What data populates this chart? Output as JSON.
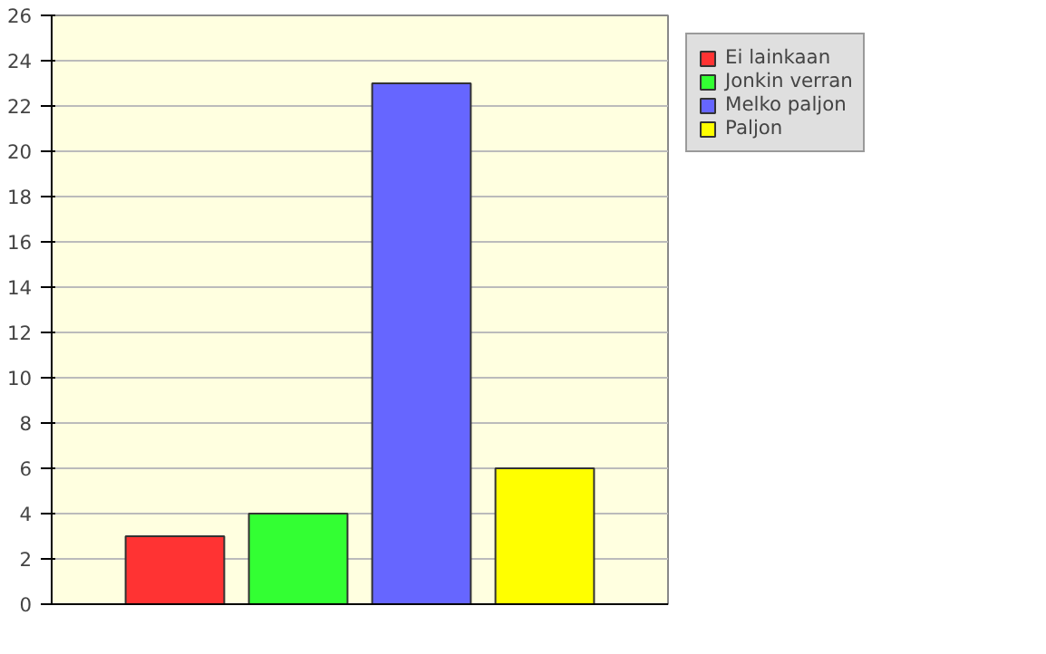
{
  "chart_data": {
    "type": "bar",
    "categories": [
      null
    ],
    "series": [
      {
        "name": "Ei lainkaan",
        "color": "#ff3333",
        "values": [
          3
        ]
      },
      {
        "name": "Jonkin verran",
        "color": "#33ff33",
        "values": [
          4
        ]
      },
      {
        "name": "Melko paljon",
        "color": "#6666ff",
        "values": [
          23
        ]
      },
      {
        "name": "Paljon",
        "color": "#ffff00",
        "values": [
          6
        ]
      }
    ],
    "ylim": [
      0,
      26
    ],
    "yticks": [
      0,
      2,
      4,
      6,
      8,
      10,
      12,
      14,
      16,
      18,
      20,
      22,
      24,
      26
    ],
    "grid": "y",
    "legend": "top right",
    "tick_labels": "y"
  }
}
